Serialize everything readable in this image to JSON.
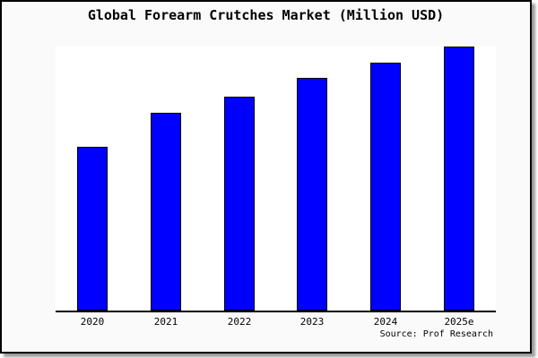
{
  "title": "Global Forearm Crutches Market (Million USD)",
  "source": "Source: Prof Research",
  "colors": {
    "bar_fill": "#0000ff",
    "bar_border": "#000000",
    "plot_background": "#ffffff",
    "frame_background": "#fafafa",
    "frame_border": "#000000",
    "shadow": "#999999",
    "text": "#000000"
  },
  "chart_data": {
    "type": "bar",
    "title": "Global Forearm Crutches Market (Million USD)",
    "categories": [
      "2020",
      "2021",
      "2022",
      "2023",
      "2024",
      "2025e"
    ],
    "values": [
      62,
      75,
      81,
      88,
      94,
      100
    ],
    "units": "Million USD",
    "value_note": "No y-axis or data labels shown; values estimated as percent of the tallest bar (2025e = 100)",
    "xlabel": "",
    "ylabel": "",
    "ylim": [
      0,
      100
    ],
    "y_axis_visible": false,
    "gridlines": false,
    "legend": "none",
    "annotations": [
      "Source: Prof Research"
    ]
  }
}
